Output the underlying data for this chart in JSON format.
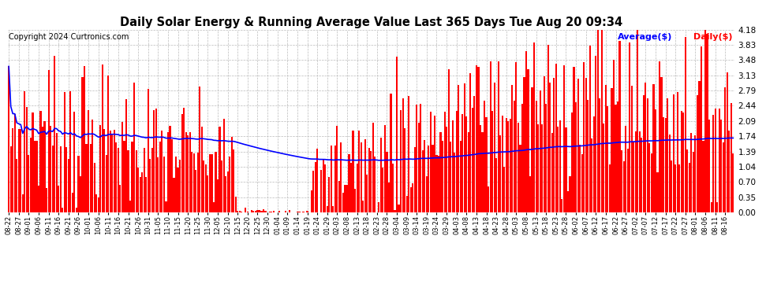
{
  "title": "Daily Solar Energy & Running Average Value Last 365 Days Tue Aug 20 09:34",
  "copyright": "Copyright 2024 Curtronics.com",
  "legend_avg": "Average($)",
  "legend_daily": "Daily($)",
  "yticks": [
    0.0,
    0.35,
    0.7,
    1.04,
    1.39,
    1.74,
    2.09,
    2.44,
    2.79,
    3.13,
    3.48,
    3.83,
    4.18
  ],
  "ymax": 4.18,
  "bar_color": "#ff0000",
  "avg_line_color": "#0000ff",
  "bg_color": "#ffffff",
  "grid_color": "#bbbbbb",
  "title_color": "#000000",
  "copyright_color": "#000000",
  "legend_avg_color": "#0000ff",
  "legend_daily_color": "#ff0000"
}
